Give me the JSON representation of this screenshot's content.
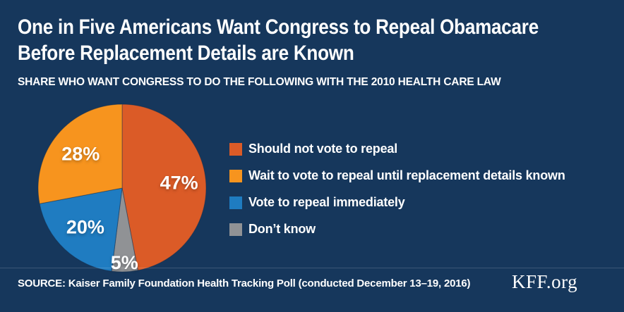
{
  "page": {
    "background_color": "#16375C"
  },
  "header": {
    "title_line1": "One in Five Americans Want Congress to Repeal Obamacare",
    "title_line2": "Before Replacement Details are Known",
    "subtitle": "SHARE WHO WANT CONGRESS TO DO THE FOLLOWING WITH THE 2010 HEALTH CARE LAW"
  },
  "chart_data": {
    "type": "pie",
    "title": "One in Five Americans Want Congress to Repeal Obamacare Before Replacement Details are Known",
    "subtitle": "SHARE WHO WANT CONGRESS TO DO THE FOLLOWING WITH THE 2010 HEALTH CARE LAW",
    "start_angle": "top",
    "direction": "clockwise",
    "legend_position": "right",
    "slices": [
      {
        "label": "Should not vote to repeal",
        "value": 47,
        "pct_label": "47%",
        "color": "#DB5B27"
      },
      {
        "label": "Wait to vote to repeal until replacement details known",
        "value": 28,
        "pct_label": "28%",
        "color": "#F7941E"
      },
      {
        "label": "Vote to repeal immediately",
        "value": 20,
        "pct_label": "20%",
        "color": "#1F7CC1"
      },
      {
        "label": "Don’t know",
        "value": 5,
        "pct_label": "5%",
        "color": "#909295"
      }
    ],
    "draw_order": [
      0,
      3,
      2,
      1
    ]
  },
  "footer": {
    "source": "SOURCE: Kaiser Family Foundation Health Tracking Poll (conducted December 13–19, 2016)",
    "brand": "KFF.org"
  }
}
